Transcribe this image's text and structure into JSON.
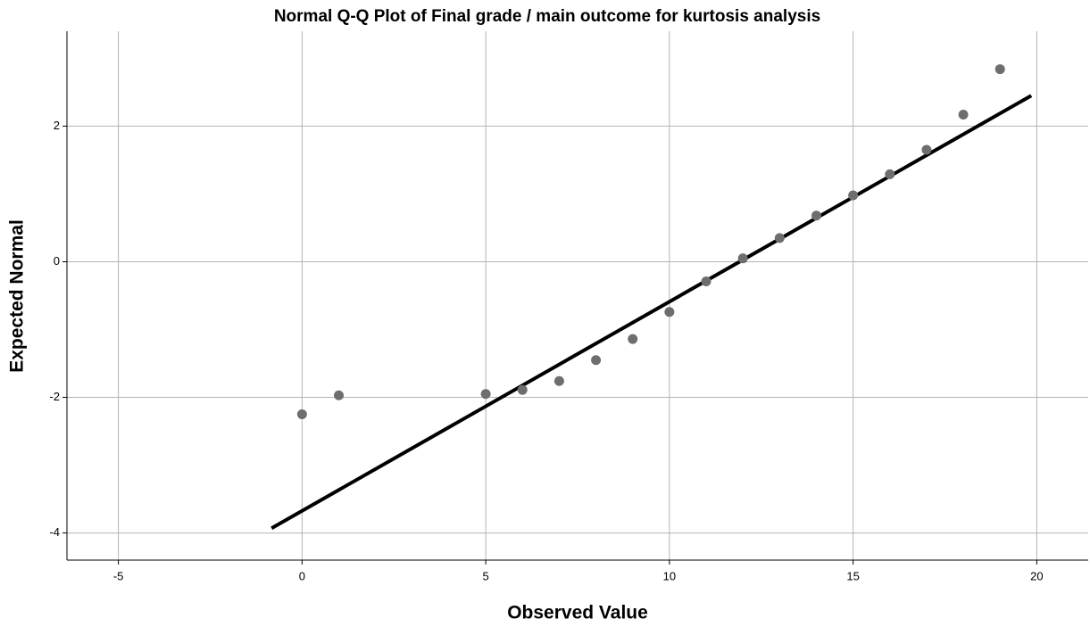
{
  "chart_data": {
    "type": "scatter",
    "title": "Normal Q-Q Plot of Final grade / main outcome for kurtosis analysis",
    "x_label": "Observed Value",
    "y_label": "Expected Normal",
    "x": [
      0,
      1,
      5,
      6,
      7,
      8,
      9,
      10,
      11,
      12,
      13,
      14,
      15,
      16,
      17,
      18,
      19
    ],
    "values": [
      -2.25,
      -1.97,
      -1.95,
      -1.89,
      -1.76,
      -1.45,
      -1.14,
      -0.74,
      -0.29,
      0.05,
      0.35,
      0.68,
      0.98,
      1.29,
      1.65,
      2.17,
      2.84
    ],
    "color": "#6e6e6e",
    "reference_line": {
      "x": [
        -0.83,
        19.85
      ],
      "y": [
        -3.93,
        2.45
      ],
      "color": "#000000"
    },
    "xlim": [
      -6.4,
      21.4
    ],
    "xticks": [
      -5,
      0,
      5,
      10,
      15,
      20
    ],
    "ylim": [
      -4.4,
      3.4
    ],
    "yticks": [
      -4,
      -2,
      0,
      2
    ],
    "grid": true
  }
}
